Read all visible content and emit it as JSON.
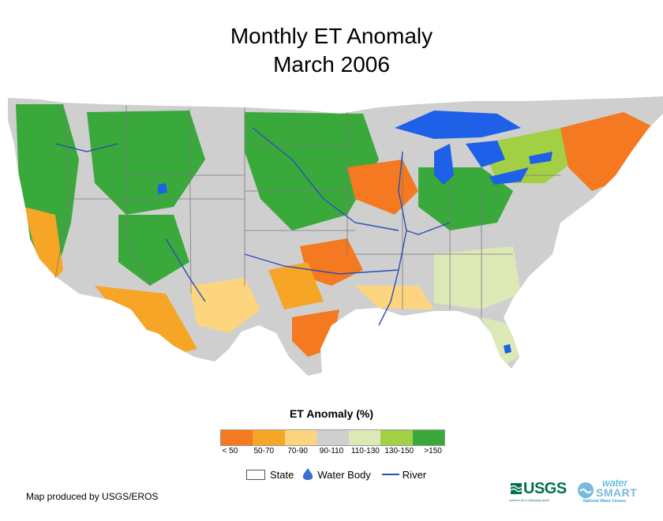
{
  "title": {
    "line1": "Monthly ET Anomaly",
    "line2": "March 2006"
  },
  "legend": {
    "title": "ET Anomaly (%)",
    "classes": [
      {
        "label": "< 50",
        "color": "#f47920"
      },
      {
        "label": "50-70",
        "color": "#f7a526"
      },
      {
        "label": "70-90",
        "color": "#fdd57f"
      },
      {
        "label": "90-110",
        "color": "#cfcfcf"
      },
      {
        "label": "110-130",
        "color": "#dce9b7"
      },
      {
        "label": "130-150",
        "color": "#a3cf45"
      },
      {
        "label": ">150",
        "color": "#3aa93b"
      }
    ],
    "key": {
      "state": "State",
      "water_body": "Water Body",
      "river": "River"
    }
  },
  "colors": {
    "water": "#1e60e8",
    "river": "#2b4eb6",
    "state_line": "#7a7a7a"
  },
  "credit": "Map produced by USGS/EROS",
  "logos": {
    "usgs": "USGS",
    "usgs_tagline": "science for a changing world",
    "water": "water",
    "smart": "SMART",
    "national": "National Water Census"
  }
}
